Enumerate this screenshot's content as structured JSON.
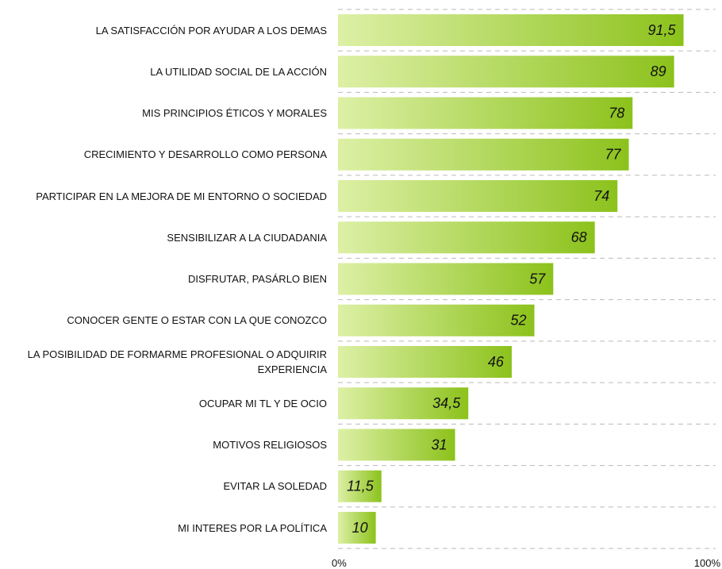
{
  "chart_data": {
    "type": "bar",
    "orientation": "horizontal",
    "categories": [
      "LA SATISFACCIÓN POR AYUDAR A LOS DEMAS",
      "LA UTILIDAD SOCIAL DE LA ACCIÓN",
      "MIS PRINCIPIOS ÉTICOS Y MORALES",
      "CRECIMIENTO Y DESARROLLO COMO PERSONA",
      "PARTICIPAR EN LA MEJORA DE MI ENTORNO O SOCIEDAD",
      "SENSIBILIZAR A LA CIUDADANIA",
      "DISFRUTAR, PASÁRLO BIEN",
      "CONOCER GENTE O ESTAR CON LA QUE CONOZCO",
      "LA POSIBILIDAD DE FORMARME PROFESIONAL O ADQUIRIR EXPERIENCIA",
      "OCUPAR MI TL Y DE OCIO",
      "MOTIVOS RELIGIOSOS",
      "EVITAR LA SOLEDAD",
      "MI INTERES POR LA POLÍTICA"
    ],
    "values": [
      91.5,
      89,
      78,
      77,
      74,
      68,
      57,
      52,
      46,
      34.5,
      31,
      11.5,
      10
    ],
    "value_labels": [
      "91,5",
      "89",
      "78",
      "77",
      "74",
      "68",
      "57",
      "52",
      "46",
      "34,5",
      "31",
      "11,5",
      "10"
    ],
    "color": [
      "#ddf0a6",
      "#8cc21c"
    ],
    "xlim": [
      0,
      100
    ],
    "xticks": [
      {
        "value": 0,
        "label": "0%"
      },
      {
        "value": 100,
        "label": "100%"
      }
    ]
  }
}
